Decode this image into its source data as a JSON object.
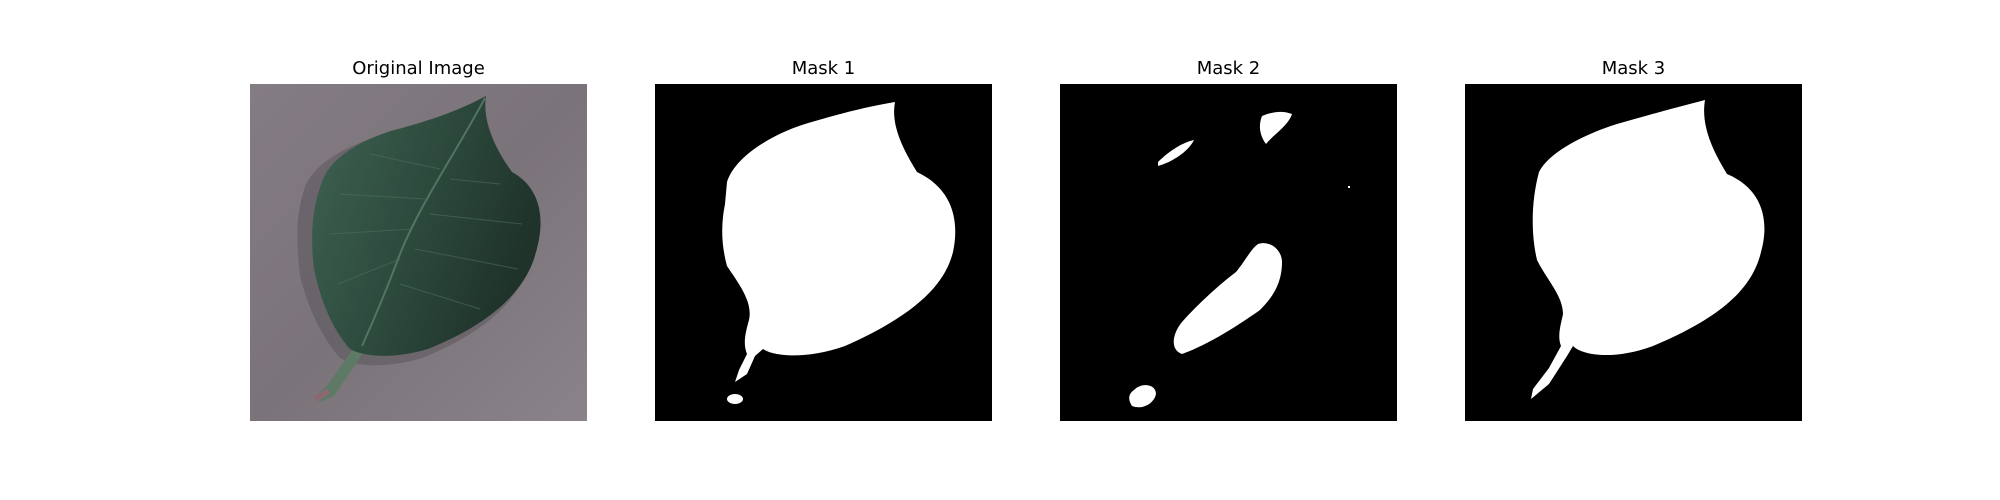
{
  "figure": {
    "panels": [
      {
        "id": "original",
        "title": "Original Image"
      },
      {
        "id": "mask1",
        "title": "Mask 1"
      },
      {
        "id": "mask2",
        "title": "Mask 2"
      },
      {
        "id": "mask3",
        "title": "Mask 3"
      }
    ]
  },
  "colors": {
    "background": "#ffffff",
    "mask_background": "#000000",
    "mask_foreground": "#ffffff",
    "photo_surface": "#7a7379",
    "leaf_dark": "#22382f",
    "leaf_mid": "#3a5c4b",
    "stem": "#5e7a66"
  }
}
